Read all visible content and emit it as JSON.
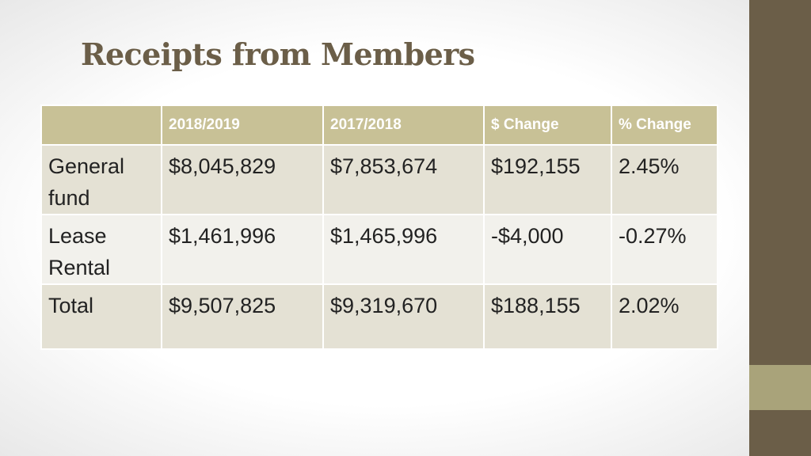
{
  "slide": {
    "title": "Receipts from Members"
  },
  "table": {
    "headers": [
      "",
      "2018/2019",
      "2017/2018",
      "$ Change",
      "% Change"
    ],
    "rows": [
      {
        "label_line1": "General",
        "label_line2": "fund",
        "y2018_2019": "$8,045,829",
        "y2017_2018": "$7,853,674",
        "dollar_change": "$192,155",
        "pct_change": "2.45%"
      },
      {
        "label_line1": "Lease",
        "label_line2": "Rental",
        "y2018_2019": "$1,461,996",
        "y2017_2018": "$1,465,996",
        "dollar_change": "-$4,000",
        "pct_change": "-0.27%"
      },
      {
        "label_line1": "Total",
        "label_line2": "",
        "y2018_2019": "$9,507,825",
        "y2017_2018": "$9,319,670",
        "dollar_change": "$188,155",
        "pct_change": "2.02%"
      }
    ]
  },
  "theme": {
    "accent_dark": "#6b5e48",
    "accent_light": "#a9a37a",
    "header_fill": "#c8c196",
    "row_fill_odd": "#e4e1d4",
    "row_fill_even": "#f2f1ec"
  }
}
